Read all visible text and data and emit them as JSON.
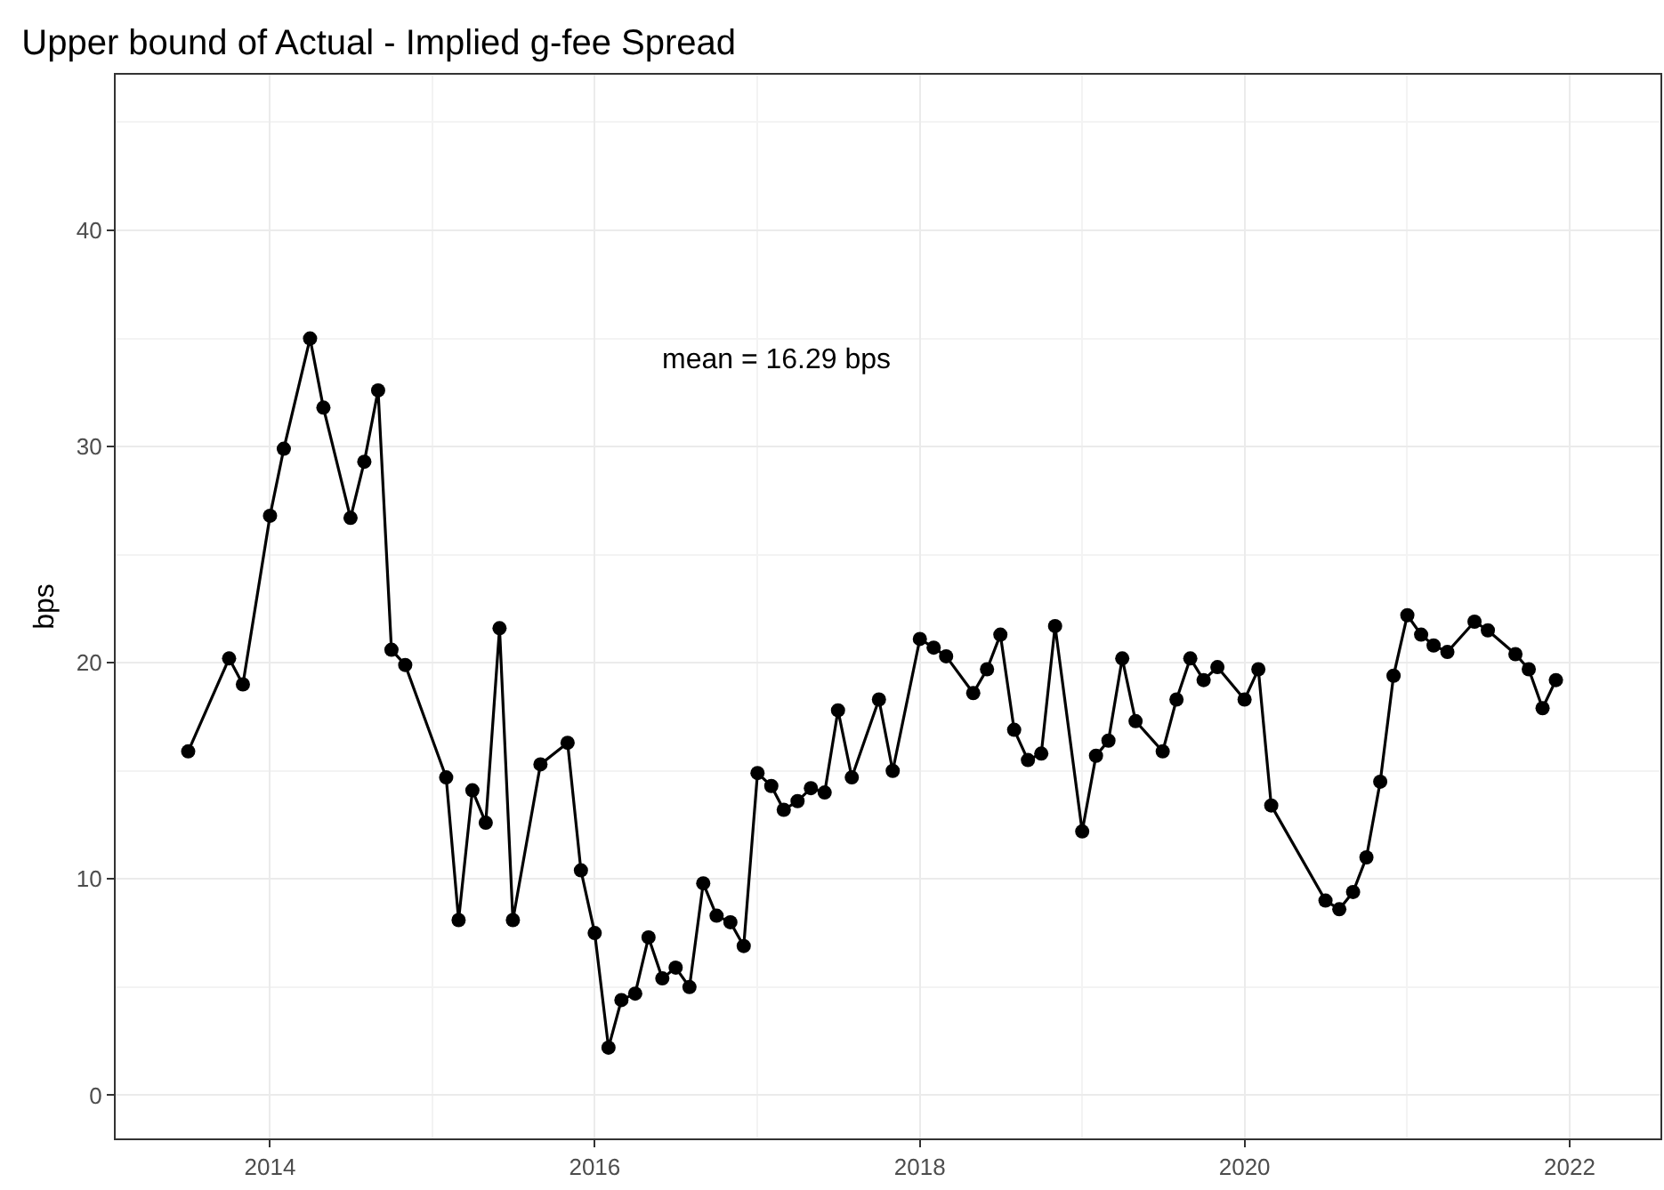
{
  "chart_data": {
    "type": "line",
    "title": "Upper bound of Actual - Implied g-fee Spread",
    "ylabel": "bps",
    "x": [
      "2013-07",
      "2013-10",
      "2013-11",
      "2014-01",
      "2014-02",
      "2014-04",
      "2014-05",
      "2014-07",
      "2014-08",
      "2014-09",
      "2014-10",
      "2014-11",
      "2015-02",
      "2015-03",
      "2015-04",
      "2015-05",
      "2015-06",
      "2015-07",
      "2015-09",
      "2015-11",
      "2015-12",
      "2016-01",
      "2016-02",
      "2016-03",
      "2016-04",
      "2016-05",
      "2016-06",
      "2016-07",
      "2016-08",
      "2016-09",
      "2016-10",
      "2016-11",
      "2016-12",
      "2017-01",
      "2017-02",
      "2017-03",
      "2017-04",
      "2017-05",
      "2017-06",
      "2017-07",
      "2017-08",
      "2017-10",
      "2017-11",
      "2018-01",
      "2018-02",
      "2018-03",
      "2018-05",
      "2018-06",
      "2018-07",
      "2018-08",
      "2018-09",
      "2018-10",
      "2018-11",
      "2019-01",
      "2019-02",
      "2019-03",
      "2019-04",
      "2019-05",
      "2019-07",
      "2019-08",
      "2019-09",
      "2019-10",
      "2019-11",
      "2020-01",
      "2020-02",
      "2020-03",
      "2020-07",
      "2020-08",
      "2020-09",
      "2020-10",
      "2020-11",
      "2020-12",
      "2021-01",
      "2021-02",
      "2021-03",
      "2021-04",
      "2021-06",
      "2021-07",
      "2021-09",
      "2021-10",
      "2021-11",
      "2021-12"
    ],
    "series": [
      {
        "color": "#000000",
        "values": [
          15.9,
          20.2,
          19.0,
          26.8,
          29.9,
          35.0,
          31.8,
          26.7,
          29.3,
          32.6,
          20.6,
          19.9,
          14.7,
          8.1,
          14.1,
          12.6,
          21.6,
          8.1,
          15.3,
          16.3,
          10.4,
          7.5,
          2.2,
          4.4,
          4.7,
          7.3,
          5.4,
          5.9,
          5.0,
          9.8,
          8.3,
          8.0,
          6.9,
          14.9,
          14.3,
          13.2,
          13.6,
          14.2,
          14.0,
          17.8,
          14.7,
          18.3,
          15.0,
          21.1,
          20.7,
          20.3,
          18.6,
          19.7,
          21.3,
          16.9,
          15.5,
          15.8,
          21.7,
          12.2,
          15.7,
          16.4,
          20.2,
          17.3,
          15.9,
          18.3,
          20.2,
          19.2,
          19.8,
          18.3,
          19.7,
          13.4,
          9.0,
          8.6,
          9.4,
          11.0,
          14.5,
          19.4,
          22.2,
          21.3,
          20.8,
          20.5,
          21.9,
          21.5,
          20.4,
          19.7,
          17.9,
          19.2
        ]
      }
    ],
    "xlim": [
      "2013-01-19",
      "2022-07-24"
    ],
    "xticks": [
      "2014",
      "2016",
      "2018",
      "2020",
      "2022"
    ],
    "ylim": [
      -2,
      47.2
    ],
    "yticks": [
      0,
      10,
      20,
      30,
      40
    ],
    "annotations": [
      "mean = 16.29 bps"
    ],
    "grid": true,
    "marker": "circle",
    "line_style": "solid"
  }
}
